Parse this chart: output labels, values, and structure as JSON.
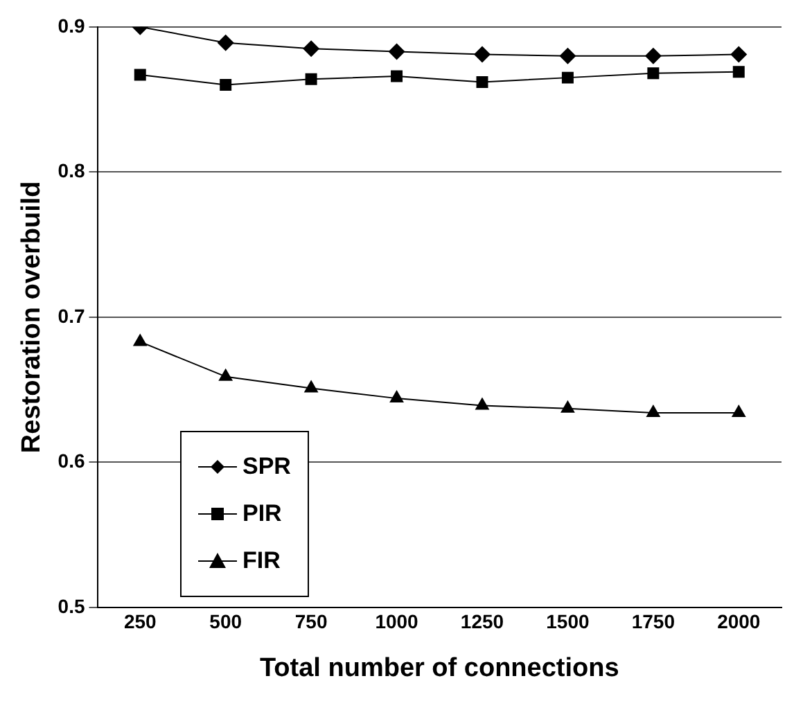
{
  "chart_data": {
    "type": "line",
    "xlabel": "Total number of connections",
    "ylabel": "Restoration overbuild",
    "x": [
      250,
      500,
      750,
      1000,
      1250,
      1500,
      1750,
      2000
    ],
    "xlim": [
      125,
      2125
    ],
    "xticks": [
      250,
      500,
      750,
      1000,
      1250,
      1500,
      1750,
      2000
    ],
    "ylim": [
      0.5,
      0.9
    ],
    "yticks": [
      0.5,
      0.6,
      0.7,
      0.8,
      0.9
    ],
    "grid": "y",
    "legend": "bottom left",
    "line_style": "solid",
    "series": [
      {
        "name": "SPR",
        "color": "#000000",
        "marker": "diamond",
        "values": [
          0.9,
          0.889,
          0.885,
          0.883,
          0.881,
          0.88,
          0.88,
          0.881
        ]
      },
      {
        "name": "PIR",
        "color": "#000000",
        "marker": "square",
        "values": [
          0.867,
          0.86,
          0.864,
          0.866,
          0.862,
          0.865,
          0.868,
          0.869
        ]
      },
      {
        "name": "FIR",
        "color": "#000000",
        "marker": "triangle",
        "values": [
          0.683,
          0.659,
          0.651,
          0.644,
          0.639,
          0.637,
          0.634,
          0.634
        ]
      }
    ]
  }
}
